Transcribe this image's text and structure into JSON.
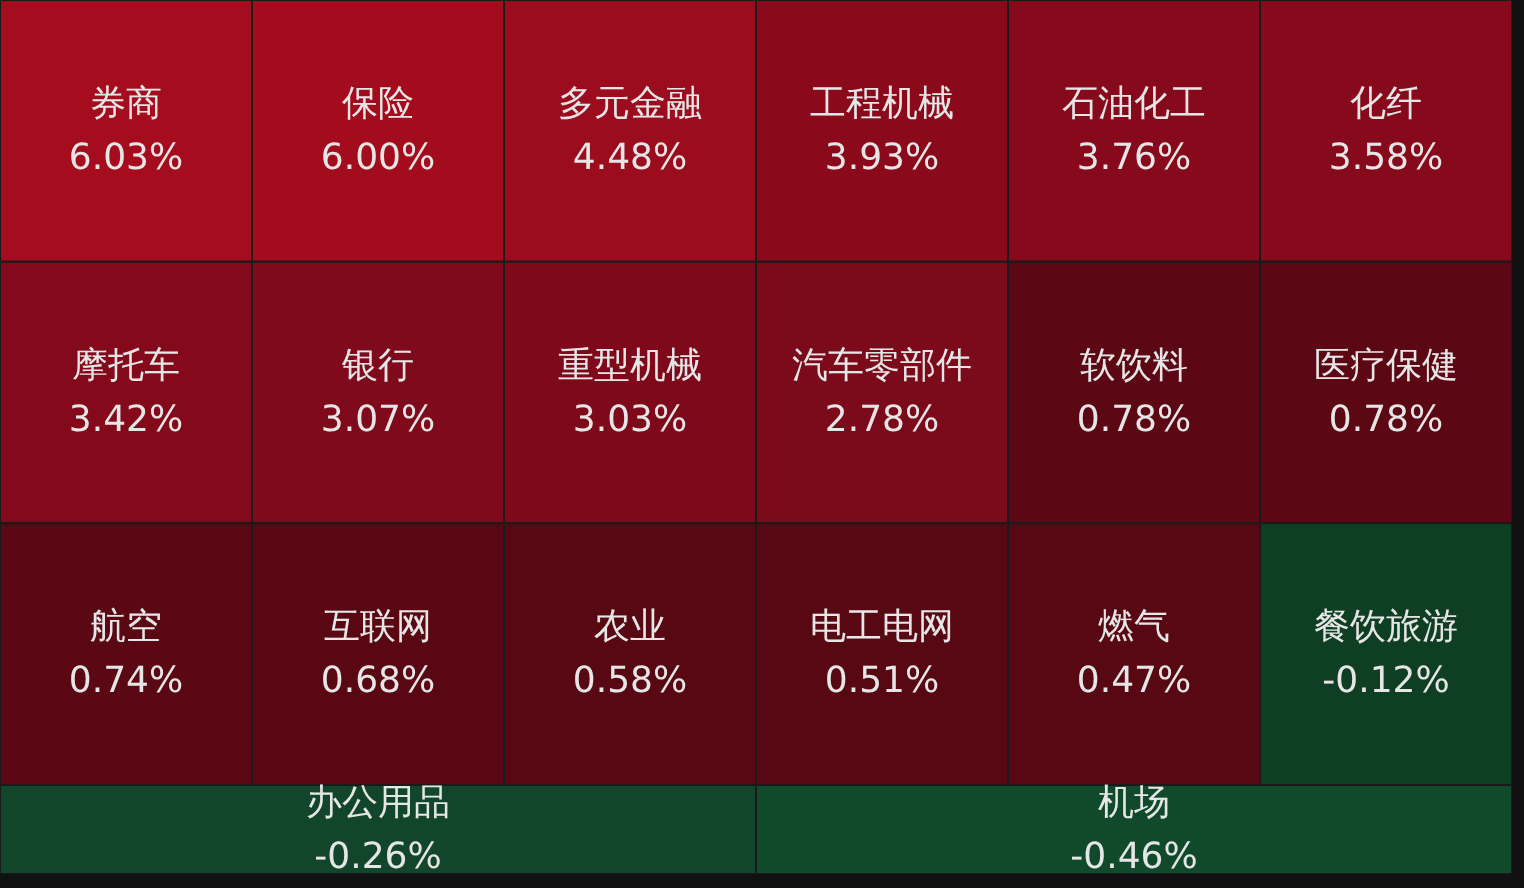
{
  "chart_data": {
    "type": "other",
    "categories": [
      "券商",
      "保险",
      "多元金融",
      "工程机械",
      "石油化工",
      "化纤",
      "摩托车",
      "银行",
      "重型机械",
      "汽车零部件",
      "软饮料",
      "医疗保健",
      "航空",
      "互联网",
      "农业",
      "电工电网",
      "燃气",
      "餐饮旅游",
      "办公用品",
      "机场"
    ],
    "values": [
      6.03,
      6.0,
      4.48,
      3.93,
      3.76,
      3.58,
      3.42,
      3.07,
      3.03,
      2.78,
      0.78,
      0.78,
      0.74,
      0.68,
      0.58,
      0.51,
      0.47,
      -0.12,
      -0.26,
      -0.46
    ],
    "value_labels": [
      "6.03%",
      "6.00%",
      "4.48%",
      "3.93%",
      "3.76%",
      "3.58%",
      "3.42%",
      "3.07%",
      "3.03%",
      "2.78%",
      "0.78%",
      "0.78%",
      "0.74%",
      "0.68%",
      "0.58%",
      "0.51%",
      "0.47%",
      "-0.12%",
      "-0.26%",
      "-0.46%"
    ],
    "colors": [
      "#a50d1e",
      "#a30c1d",
      "#9b0c1e",
      "#8a0a1c",
      "#870a1c",
      "#860a1c",
      "#84091b",
      "#7e0a1b",
      "#7d091b",
      "#7b0a1b",
      "#5c0814",
      "#5c0814",
      "#5a0814",
      "#590813",
      "#580813",
      "#570813",
      "#570813",
      "#0f3f22",
      "#11462a",
      "#114a2a"
    ]
  }
}
